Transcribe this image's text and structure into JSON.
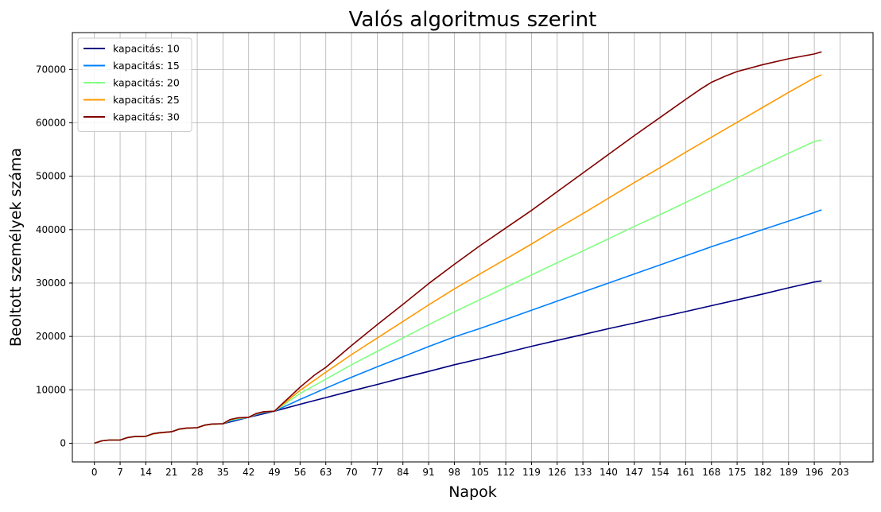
{
  "chart_data": {
    "type": "line",
    "title": "Valós algoritmus szerint",
    "xlabel": "Napok",
    "ylabel": "Beoltott személyek száma",
    "xlim": [
      -6,
      212
    ],
    "ylim": [
      -3500,
      76900
    ],
    "x_ticks": [
      0,
      7,
      14,
      21,
      28,
      35,
      42,
      49,
      56,
      63,
      70,
      77,
      84,
      91,
      98,
      105,
      112,
      119,
      126,
      133,
      140,
      147,
      154,
      161,
      168,
      175,
      182,
      189,
      196,
      203
    ],
    "y_ticks": [
      0,
      10000,
      20000,
      30000,
      40000,
      50000,
      60000,
      70000
    ],
    "grid": true,
    "legend_position": "top-left",
    "series": [
      {
        "name": "kapacitás: 10",
        "color": "#000080",
        "points": [
          [
            0,
            0
          ],
          [
            2,
            450
          ],
          [
            4,
            600
          ],
          [
            7,
            600
          ],
          [
            9,
            1050
          ],
          [
            11,
            1250
          ],
          [
            14,
            1300
          ],
          [
            16,
            1750
          ],
          [
            18,
            1950
          ],
          [
            21,
            2150
          ],
          [
            23,
            2600
          ],
          [
            25,
            2800
          ],
          [
            28,
            2900
          ],
          [
            30,
            3350
          ],
          [
            32,
            3550
          ],
          [
            35,
            3650
          ],
          [
            42,
            4850
          ],
          [
            49,
            6000
          ],
          [
            56,
            7300
          ],
          [
            63,
            8550
          ],
          [
            70,
            9800
          ],
          [
            77,
            11000
          ],
          [
            84,
            12250
          ],
          [
            91,
            13450
          ],
          [
            98,
            14700
          ],
          [
            105,
            15800
          ],
          [
            112,
            16950
          ],
          [
            119,
            18150
          ],
          [
            126,
            19250
          ],
          [
            133,
            20350
          ],
          [
            140,
            21450
          ],
          [
            147,
            22500
          ],
          [
            154,
            23600
          ],
          [
            161,
            24650
          ],
          [
            168,
            25750
          ],
          [
            175,
            26850
          ],
          [
            182,
            27950
          ],
          [
            189,
            29100
          ],
          [
            196,
            30200
          ],
          [
            198,
            30400
          ]
        ]
      },
      {
        "name": "kapacitás: 15",
        "color": "#0080ff",
        "points": [
          [
            0,
            0
          ],
          [
            2,
            450
          ],
          [
            4,
            600
          ],
          [
            7,
            600
          ],
          [
            9,
            1050
          ],
          [
            11,
            1250
          ],
          [
            14,
            1300
          ],
          [
            16,
            1750
          ],
          [
            18,
            1950
          ],
          [
            21,
            2150
          ],
          [
            23,
            2600
          ],
          [
            25,
            2800
          ],
          [
            28,
            2900
          ],
          [
            30,
            3350
          ],
          [
            32,
            3550
          ],
          [
            35,
            3650
          ],
          [
            37,
            4150
          ],
          [
            39,
            4450
          ],
          [
            42,
            4850
          ],
          [
            44,
            5350
          ],
          [
            46,
            5700
          ],
          [
            49,
            6000
          ],
          [
            56,
            8200
          ],
          [
            63,
            10300
          ],
          [
            70,
            12350
          ],
          [
            77,
            14300
          ],
          [
            84,
            16200
          ],
          [
            91,
            18100
          ],
          [
            98,
            19900
          ],
          [
            105,
            21500
          ],
          [
            112,
            23200
          ],
          [
            119,
            24900
          ],
          [
            126,
            26600
          ],
          [
            133,
            28300
          ],
          [
            140,
            30000
          ],
          [
            147,
            31700
          ],
          [
            154,
            33400
          ],
          [
            161,
            35100
          ],
          [
            168,
            36800
          ],
          [
            175,
            38400
          ],
          [
            182,
            40000
          ],
          [
            189,
            41600
          ],
          [
            196,
            43200
          ],
          [
            198,
            43700
          ]
        ]
      },
      {
        "name": "kapacitás: 20",
        "color": "#80ff80",
        "points": [
          [
            0,
            0
          ],
          [
            2,
            450
          ],
          [
            4,
            600
          ],
          [
            7,
            600
          ],
          [
            9,
            1050
          ],
          [
            11,
            1250
          ],
          [
            14,
            1300
          ],
          [
            16,
            1750
          ],
          [
            18,
            1950
          ],
          [
            21,
            2150
          ],
          [
            23,
            2600
          ],
          [
            25,
            2800
          ],
          [
            28,
            2900
          ],
          [
            30,
            3350
          ],
          [
            32,
            3550
          ],
          [
            35,
            3650
          ],
          [
            37,
            4300
          ],
          [
            39,
            4600
          ],
          [
            42,
            4850
          ],
          [
            44,
            5450
          ],
          [
            46,
            5800
          ],
          [
            49,
            6000
          ],
          [
            56,
            9300
          ],
          [
            63,
            12000
          ],
          [
            70,
            14700
          ],
          [
            77,
            17200
          ],
          [
            84,
            19700
          ],
          [
            91,
            22200
          ],
          [
            98,
            24600
          ],
          [
            105,
            26900
          ],
          [
            112,
            29200
          ],
          [
            119,
            31500
          ],
          [
            126,
            33800
          ],
          [
            133,
            36000
          ],
          [
            140,
            38300
          ],
          [
            147,
            40600
          ],
          [
            154,
            42800
          ],
          [
            161,
            45100
          ],
          [
            168,
            47400
          ],
          [
            175,
            49700
          ],
          [
            182,
            52000
          ],
          [
            189,
            54300
          ],
          [
            196,
            56500
          ],
          [
            198,
            56800
          ]
        ]
      },
      {
        "name": "kapacitás: 25",
        "color": "#ff9900",
        "points": [
          [
            0,
            0
          ],
          [
            2,
            450
          ],
          [
            4,
            600
          ],
          [
            7,
            600
          ],
          [
            9,
            1050
          ],
          [
            11,
            1250
          ],
          [
            14,
            1300
          ],
          [
            16,
            1750
          ],
          [
            18,
            1950
          ],
          [
            21,
            2150
          ],
          [
            23,
            2600
          ],
          [
            25,
            2800
          ],
          [
            28,
            2900
          ],
          [
            30,
            3350
          ],
          [
            32,
            3550
          ],
          [
            35,
            3650
          ],
          [
            37,
            4400
          ],
          [
            39,
            4700
          ],
          [
            42,
            4850
          ],
          [
            44,
            5500
          ],
          [
            46,
            5850
          ],
          [
            49,
            6000
          ],
          [
            56,
            9900
          ],
          [
            63,
            13300
          ],
          [
            70,
            16600
          ],
          [
            77,
            19700
          ],
          [
            84,
            22800
          ],
          [
            91,
            25900
          ],
          [
            98,
            28900
          ],
          [
            105,
            31700
          ],
          [
            112,
            34500
          ],
          [
            119,
            37300
          ],
          [
            126,
            40200
          ],
          [
            133,
            43000
          ],
          [
            140,
            45900
          ],
          [
            147,
            48800
          ],
          [
            154,
            51600
          ],
          [
            161,
            54500
          ],
          [
            168,
            57300
          ],
          [
            175,
            60100
          ],
          [
            182,
            62900
          ],
          [
            189,
            65700
          ],
          [
            196,
            68400
          ],
          [
            198,
            69000
          ]
        ]
      },
      {
        "name": "kapacitás: 30",
        "color": "#800000",
        "points": [
          [
            0,
            0
          ],
          [
            2,
            450
          ],
          [
            4,
            600
          ],
          [
            7,
            600
          ],
          [
            9,
            1050
          ],
          [
            11,
            1250
          ],
          [
            14,
            1300
          ],
          [
            16,
            1800
          ],
          [
            18,
            2000
          ],
          [
            21,
            2150
          ],
          [
            23,
            2650
          ],
          [
            25,
            2850
          ],
          [
            28,
            2900
          ],
          [
            30,
            3400
          ],
          [
            32,
            3600
          ],
          [
            35,
            3650
          ],
          [
            37,
            4450
          ],
          [
            39,
            4750
          ],
          [
            42,
            4850
          ],
          [
            44,
            5550
          ],
          [
            46,
            5900
          ],
          [
            49,
            6000
          ],
          [
            56,
            10500
          ],
          [
            60,
            12800
          ],
          [
            63,
            14200
          ],
          [
            70,
            18300
          ],
          [
            77,
            22200
          ],
          [
            84,
            26000
          ],
          [
            91,
            29900
          ],
          [
            98,
            33500
          ],
          [
            105,
            37000
          ],
          [
            112,
            40300
          ],
          [
            119,
            43600
          ],
          [
            126,
            47100
          ],
          [
            133,
            50600
          ],
          [
            140,
            54100
          ],
          [
            147,
            57600
          ],
          [
            154,
            61000
          ],
          [
            161,
            64400
          ],
          [
            165,
            66300
          ],
          [
            168,
            67600
          ],
          [
            172,
            68800
          ],
          [
            175,
            69600
          ],
          [
            182,
            70900
          ],
          [
            189,
            72000
          ],
          [
            196,
            72900
          ],
          [
            198,
            73300
          ]
        ]
      }
    ]
  }
}
